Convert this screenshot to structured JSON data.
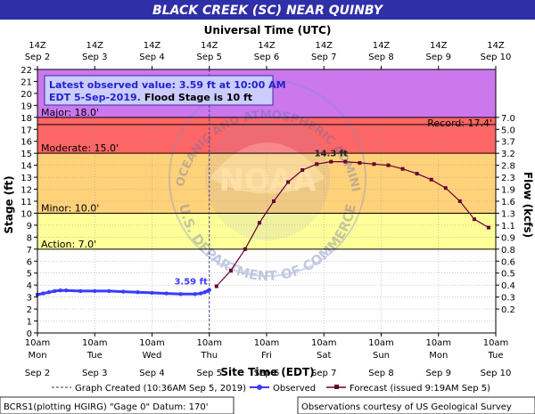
{
  "chart_data": {
    "type": "line",
    "title": "BLACK CREEK (SC) NEAR QUINBY",
    "top_axis_title": "Universal Time (UTC)",
    "bottom_axis_title": "Site Time (EDT)",
    "ylabel": "Stage (ft)",
    "y2label": "Flow (kcfs)",
    "ylim": [
      0,
      22
    ],
    "y_ticks": [
      0,
      1,
      2,
      3,
      4,
      5,
      6,
      7,
      8,
      9,
      10,
      11,
      12,
      13,
      14,
      15,
      16,
      17,
      18,
      19,
      20,
      21,
      22
    ],
    "xlim": [
      0,
      8
    ],
    "x_ticks": [
      0,
      1,
      2,
      3,
      4,
      5,
      6,
      7,
      8
    ],
    "top_ticks": [
      {
        "line1": "14Z",
        "line2": "Sep 2"
      },
      {
        "line1": "14Z",
        "line2": "Sep 3"
      },
      {
        "line1": "14Z",
        "line2": "Sep 4"
      },
      {
        "line1": "14Z",
        "line2": "Sep 5"
      },
      {
        "line1": "14Z",
        "line2": "Sep 6"
      },
      {
        "line1": "14Z",
        "line2": "Sep 7"
      },
      {
        "line1": "14Z",
        "line2": "Sep 8"
      },
      {
        "line1": "14Z",
        "line2": "Sep 9"
      },
      {
        "line1": "14Z",
        "line2": "Sep 10"
      }
    ],
    "bottom_ticks": [
      {
        "time": "10am",
        "day": "Mon",
        "date": "Sep 2"
      },
      {
        "time": "10am",
        "day": "Tue",
        "date": "Sep 3"
      },
      {
        "time": "10am",
        "day": "Wed",
        "date": "Sep 4"
      },
      {
        "time": "10am",
        "day": "Thu",
        "date": "Sep 5"
      },
      {
        "time": "10am",
        "day": "Fri",
        "date": "Sep 6"
      },
      {
        "time": "10am",
        "day": "Sat",
        "date": "Sep 7"
      },
      {
        "time": "10am",
        "day": "Sun",
        "date": "Sep 8"
      },
      {
        "time": "10am",
        "day": "Mon",
        "date": "Sep 9"
      },
      {
        "time": "10am",
        "day": "Tue",
        "date": "Sep 10"
      }
    ],
    "flow_ticks": [
      {
        "stage": 2,
        "label": "0.2"
      },
      {
        "stage": 3,
        "label": "0.3"
      },
      {
        "stage": 4,
        "label": "0.4"
      },
      {
        "stage": 5,
        "label": "0.5"
      },
      {
        "stage": 6,
        "label": "0.6"
      },
      {
        "stage": 7,
        "label": "0.8"
      },
      {
        "stage": 8,
        "label": "0.9"
      },
      {
        "stage": 9,
        "label": "1.1"
      },
      {
        "stage": 10,
        "label": "1.3"
      },
      {
        "stage": 11,
        "label": "1.6"
      },
      {
        "stage": 12,
        "label": "1.9"
      },
      {
        "stage": 13,
        "label": "2.3"
      },
      {
        "stage": 14,
        "label": "2.8"
      },
      {
        "stage": 15,
        "label": "3.2"
      },
      {
        "stage": 16,
        "label": "3.7"
      },
      {
        "stage": 17,
        "label": "5.0"
      },
      {
        "stage": 18,
        "label": "7.0"
      }
    ],
    "flood_categories": [
      {
        "name": "Action",
        "label": "Action: 7.0'",
        "from": 7,
        "to": 10,
        "color": "#ffff99"
      },
      {
        "name": "Minor",
        "label": "Minor: 10.0'",
        "from": 10,
        "to": 15,
        "color": "#ffd27a"
      },
      {
        "name": "Moderate",
        "label": "Moderate: 15.0'",
        "from": 15,
        "to": 18,
        "color": "#ff6666"
      },
      {
        "name": "Major",
        "label": "Major: 18.0'",
        "from": 18,
        "to": 22,
        "color": "#cc77ee"
      }
    ],
    "record": {
      "label": "Record: 17.4'",
      "value": 17.4
    },
    "info_box": {
      "line1": "Latest observed value: 3.59 ft at 10:00 AM",
      "line2": "EDT 5-Sep-2019.",
      "line2b": "Flood Stage is 10 ft"
    },
    "series": [
      {
        "name": "Observed",
        "color": "#3b3bff",
        "x": [
          0,
          0.1,
          0.2,
          0.3,
          0.4,
          0.5,
          0.75,
          1.0,
          1.25,
          1.5,
          1.75,
          2.0,
          2.25,
          2.5,
          2.75,
          2.85,
          2.92,
          2.97,
          3.0
        ],
        "values": [
          3.2,
          3.3,
          3.4,
          3.5,
          3.55,
          3.55,
          3.5,
          3.5,
          3.5,
          3.45,
          3.4,
          3.35,
          3.3,
          3.25,
          3.25,
          3.3,
          3.4,
          3.5,
          3.59
        ]
      },
      {
        "name": "Forecast (issued 9:19AM Sep 5)",
        "color": "#660033",
        "x": [
          3.125,
          3.375,
          3.625,
          3.875,
          4.125,
          4.375,
          4.625,
          4.875,
          5.125,
          5.375,
          5.625,
          5.875,
          6.125,
          6.375,
          6.625,
          6.875,
          7.125,
          7.375,
          7.625,
          7.875
        ],
        "values": [
          3.9,
          5.2,
          7.0,
          9.2,
          11.0,
          12.6,
          13.6,
          14.1,
          14.3,
          14.3,
          14.2,
          14.1,
          14.0,
          13.7,
          13.3,
          12.8,
          12.1,
          11.0,
          9.5,
          8.8
        ]
      }
    ],
    "annotations": [
      {
        "text": "3.59 ft",
        "x": 3.0,
        "y": 3.59,
        "color": "#3b3bff"
      },
      {
        "text": "14.3 ft",
        "x": 5.125,
        "y": 14.3,
        "color": "#222222"
      }
    ],
    "created_x": 3.0
  },
  "legend": {
    "created": "Graph Created (10:36AM Sep 5, 2019)",
    "observed": "Observed",
    "forecast": "Forecast (issued 9:19AM Sep 5)"
  },
  "footer": {
    "left": "BCRS1(plotting HGIRG) \"Gage 0\" Datum: 170'",
    "right": "Observations courtesy of US Geological Survey"
  },
  "watermark": {
    "agency_text": "NATIONAL OCEANIC AND ATMOSPHERIC ADMINISTRATION",
    "agency_bottom": "U.S. DEPARTMENT OF COMMERCE",
    "logo_text": "NOAA"
  },
  "colors": {
    "title_bg": "#2f2fa8",
    "title_fg": "#ffffff",
    "below_action": "#ffffff"
  }
}
